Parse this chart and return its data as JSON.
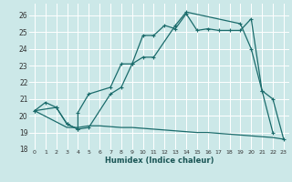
{
  "xlabel": "Humidex (Indice chaleur)",
  "xlim": [
    -0.5,
    23.5
  ],
  "ylim": [
    18,
    26.7
  ],
  "xticks": [
    0,
    1,
    2,
    3,
    4,
    5,
    6,
    7,
    8,
    9,
    10,
    11,
    12,
    13,
    14,
    15,
    16,
    17,
    18,
    19,
    20,
    21,
    22,
    23
  ],
  "yticks": [
    18,
    19,
    20,
    21,
    22,
    23,
    24,
    25,
    26
  ],
  "background_color": "#cce8e8",
  "grid_color": "#ffffff",
  "line_color": "#1a6b6b",
  "line1_x": [
    0,
    1,
    2,
    3,
    4,
    4,
    5,
    7,
    8,
    9,
    10,
    11,
    12,
    13,
    14,
    15,
    16,
    17,
    18,
    19,
    20,
    21,
    22
  ],
  "line1_y": [
    20.3,
    20.8,
    20.5,
    19.5,
    19.2,
    20.2,
    21.3,
    21.7,
    23.1,
    23.1,
    24.8,
    24.8,
    25.4,
    25.2,
    26.1,
    25.1,
    25.2,
    25.1,
    25.1,
    25.1,
    25.8,
    21.5,
    19.0
  ],
  "line2_x": [
    0,
    2,
    3,
    4,
    5,
    7,
    8,
    9,
    10,
    11,
    13,
    14,
    19,
    20,
    21,
    22,
    23
  ],
  "line2_y": [
    20.3,
    20.5,
    19.5,
    19.2,
    19.3,
    21.3,
    21.7,
    23.1,
    23.5,
    23.5,
    25.4,
    26.2,
    25.5,
    24.0,
    21.5,
    21.0,
    18.6
  ],
  "line3_x": [
    0,
    3,
    4,
    5,
    6,
    7,
    8,
    9,
    10,
    11,
    12,
    13,
    14,
    15,
    16,
    17,
    18,
    19,
    20,
    21,
    22,
    23
  ],
  "line3_y": [
    20.3,
    19.3,
    19.3,
    19.4,
    19.4,
    19.35,
    19.3,
    19.3,
    19.25,
    19.2,
    19.15,
    19.1,
    19.05,
    19.0,
    19.0,
    18.95,
    18.9,
    18.85,
    18.8,
    18.75,
    18.7,
    18.6
  ]
}
